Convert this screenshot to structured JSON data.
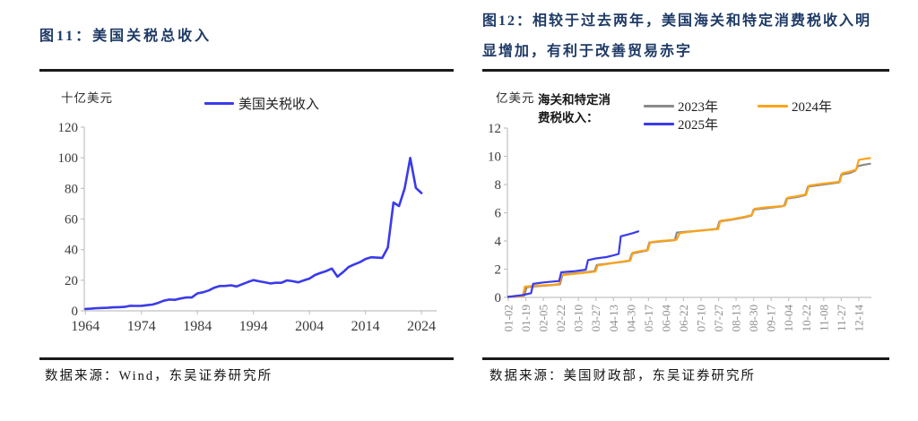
{
  "figure11": {
    "title": "图11：美国关税总收入",
    "source": "数据来源：Wind，东吴证券研究所"
  },
  "figure12": {
    "title_line1": "图12：相较于过去两年，美国海关和特定消费税收入明",
    "title_line2": "显增加，有利于改善贸易赤字",
    "legend_title_line1": "海关和特定消",
    "legend_title_line2": "费税收入：",
    "source": "数据来源：美国财政部，东吴证券研究所"
  },
  "colors": {
    "title_navy": "#1e3a66",
    "tariff_blue": "#3a3aec",
    "gray_2023": "#8a8a8a",
    "orange_2024": "#ffa318",
    "blue_2025": "#3a3aec",
    "axis_gray": "#c2c2c2",
    "tick_label_dark": "#3a3a3a",
    "tick_label_gray": "#8f8f8f"
  },
  "chart_data": [
    {
      "type": "line",
      "title": "图11：美国关税总收入",
      "ylabel": "十亿美元",
      "xlabel": "",
      "x_start": 1964,
      "x_step": 1,
      "xticks": [
        1964,
        1974,
        1984,
        1994,
        2004,
        2014,
        2024
      ],
      "yticks": [
        0,
        20,
        40,
        60,
        80,
        100,
        120
      ],
      "ylim": [
        0,
        120
      ],
      "xlim": [
        1963.8,
        2026.7
      ],
      "grid": false,
      "legend_position": "top",
      "series": [
        {
          "name": "美国关税收入",
          "color": "#3a3aec",
          "values": [
            1.2,
            1.4,
            1.7,
            1.9,
            2.0,
            2.3,
            2.4,
            2.6,
            3.3,
            3.2,
            3.3,
            3.7,
            4.1,
            5.2,
            6.6,
            7.4,
            7.2,
            8.1,
            8.7,
            8.7,
            11.4,
            12.1,
            13.3,
            15.1,
            16.2,
            16.3,
            16.7,
            15.9,
            17.4,
            18.8,
            20.1,
            19.3,
            18.7,
            17.9,
            18.3,
            18.3,
            19.9,
            19.4,
            18.6,
            19.9,
            21.1,
            23.4,
            24.8,
            26.0,
            27.6,
            22.3,
            25.3,
            28.6,
            30.3,
            31.8,
            33.9,
            35.0,
            34.8,
            34.6,
            41.3,
            70.8,
            68.5,
            80.0,
            99.9,
            80.3,
            77.0
          ]
        }
      ]
    },
    {
      "type": "line",
      "title": "图12：相较于过去两年，美国海关和特定消费税收入明显增加，有利于改善贸易赤字",
      "ylabel": "亿美元",
      "xlabel": "",
      "legend_title": "海关和特定消费税收入：",
      "xticklabels": [
        "01-02",
        "01-19",
        "02-05",
        "02-22",
        "03-10",
        "03-27",
        "04-13",
        "04-30",
        "05-17",
        "06-04",
        "06-22",
        "07-10",
        "07-27",
        "08-13",
        "08-30",
        "09-17",
        "10-04",
        "10-22",
        "11-08",
        "11-27",
        "12-14"
      ],
      "yticks": [
        0,
        2,
        4,
        6,
        8,
        10,
        12
      ],
      "ylim": [
        0,
        12
      ],
      "xlim": [
        -0.05,
        20.72
      ],
      "grid": false,
      "legend_position": "top",
      "series": [
        {
          "name": "2023年",
          "color": "#8a8a8a",
          "points": [
            [
              0,
              0.03
            ],
            [
              0.9,
              0.12
            ],
            [
              1.05,
              0.72
            ],
            [
              1.7,
              0.8
            ],
            [
              2.6,
              0.88
            ],
            [
              2.95,
              0.93
            ],
            [
              3.1,
              1.62
            ],
            [
              3.7,
              1.7
            ],
            [
              4.4,
              1.78
            ],
            [
              4.92,
              1.86
            ],
            [
              5.05,
              2.3
            ],
            [
              5.7,
              2.4
            ],
            [
              6.4,
              2.5
            ],
            [
              6.92,
              2.6
            ],
            [
              7.05,
              3.1
            ],
            [
              7.5,
              3.22
            ],
            [
              7.92,
              3.32
            ],
            [
              8.05,
              3.88
            ],
            [
              8.7,
              3.97
            ],
            [
              9.5,
              4.05
            ],
            [
              9.62,
              4.6
            ],
            [
              10.4,
              4.68
            ],
            [
              11.3,
              4.78
            ],
            [
              11.92,
              4.86
            ],
            [
              12.05,
              5.38
            ],
            [
              12.7,
              5.5
            ],
            [
              13.5,
              5.68
            ],
            [
              13.88,
              5.8
            ],
            [
              14.0,
              6.22
            ],
            [
              14.7,
              6.32
            ],
            [
              15.6,
              6.45
            ],
            [
              15.75,
              6.5
            ],
            [
              15.88,
              7.0
            ],
            [
              16.5,
              7.12
            ],
            [
              16.95,
              7.25
            ],
            [
              17.1,
              7.85
            ],
            [
              17.7,
              7.95
            ],
            [
              18.5,
              8.08
            ],
            [
              18.88,
              8.15
            ],
            [
              19.0,
              8.7
            ],
            [
              19.5,
              8.82
            ],
            [
              19.82,
              9.0
            ],
            [
              19.95,
              9.3
            ],
            [
              20.3,
              9.4
            ],
            [
              20.65,
              9.47
            ]
          ]
        },
        {
          "name": "2024年",
          "color": "#ffa318",
          "points": [
            [
              0,
              0.03
            ],
            [
              0.82,
              0.1
            ],
            [
              0.95,
              0.76
            ],
            [
              1.7,
              0.84
            ],
            [
              2.6,
              0.9
            ],
            [
              2.9,
              0.95
            ],
            [
              3.05,
              1.58
            ],
            [
              3.7,
              1.66
            ],
            [
              4.4,
              1.75
            ],
            [
              4.97,
              1.83
            ],
            [
              5.1,
              2.26
            ],
            [
              5.7,
              2.38
            ],
            [
              6.4,
              2.52
            ],
            [
              6.97,
              2.62
            ],
            [
              7.1,
              3.17
            ],
            [
              7.5,
              3.27
            ],
            [
              7.97,
              3.36
            ],
            [
              8.1,
              3.92
            ],
            [
              8.7,
              4.0
            ],
            [
              9.6,
              4.08
            ],
            [
              9.78,
              4.55
            ],
            [
              10.4,
              4.66
            ],
            [
              11.3,
              4.77
            ],
            [
              11.97,
              4.84
            ],
            [
              12.1,
              5.43
            ],
            [
              12.7,
              5.53
            ],
            [
              13.5,
              5.72
            ],
            [
              13.9,
              5.84
            ],
            [
              14.05,
              6.28
            ],
            [
              14.7,
              6.38
            ],
            [
              15.6,
              6.47
            ],
            [
              15.8,
              6.52
            ],
            [
              15.93,
              7.06
            ],
            [
              16.5,
              7.18
            ],
            [
              17.0,
              7.3
            ],
            [
              17.15,
              7.92
            ],
            [
              17.7,
              8.02
            ],
            [
              18.5,
              8.14
            ],
            [
              18.92,
              8.2
            ],
            [
              19.05,
              8.8
            ],
            [
              19.5,
              8.92
            ],
            [
              19.85,
              9.06
            ],
            [
              20.0,
              9.74
            ],
            [
              20.35,
              9.82
            ],
            [
              20.65,
              9.87
            ]
          ]
        },
        {
          "name": "2025年",
          "color": "#3a3aec",
          "points": [
            [
              0,
              0.04
            ],
            [
              0.8,
              0.16
            ],
            [
              1.3,
              0.3
            ],
            [
              1.42,
              0.96
            ],
            [
              2.0,
              1.06
            ],
            [
              2.9,
              1.16
            ],
            [
              3.02,
              1.78
            ],
            [
              3.8,
              1.86
            ],
            [
              4.42,
              1.96
            ],
            [
              4.55,
              2.64
            ],
            [
              5.0,
              2.76
            ],
            [
              5.6,
              2.86
            ],
            [
              6.0,
              2.98
            ],
            [
              6.3,
              3.08
            ],
            [
              6.42,
              4.33
            ],
            [
              6.8,
              4.45
            ],
            [
              7.1,
              4.55
            ],
            [
              7.42,
              4.68
            ]
          ]
        }
      ]
    }
  ]
}
